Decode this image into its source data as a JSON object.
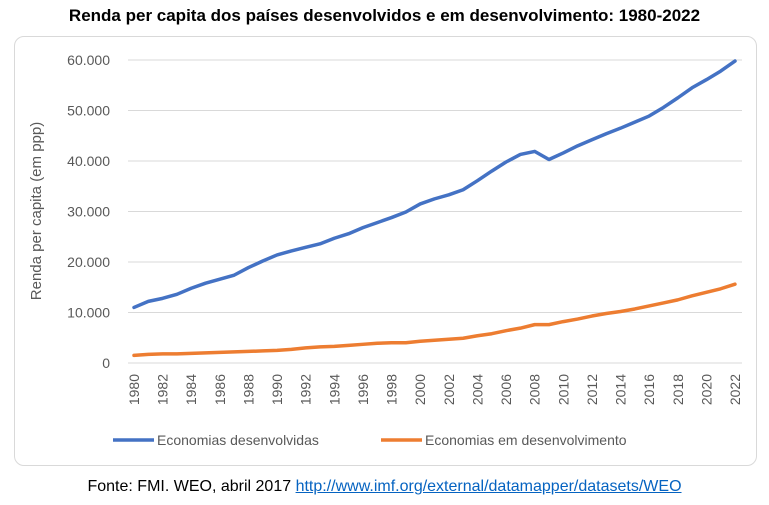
{
  "title": "Renda per capita dos países desenvolvidos e em desenvolvimento: 1980-2022",
  "source": {
    "prefix": "Fonte: FMI. WEO, abril 2017",
    "link_text": "http://www.imf.org/external/datamapper/datasets/WEO"
  },
  "colors": {
    "developed": "#4472c4",
    "developing": "#ed7d31",
    "grid": "#d9d9d9",
    "axis_text": "#595959"
  },
  "chart_data": {
    "type": "line",
    "title": "Renda per capita dos países desenvolvidos e em desenvolvimento: 1980-2022",
    "ylabel": "Renda per capita (em ppp)",
    "xlabel": "",
    "ylim": [
      0,
      60000
    ],
    "y_ticks": [
      0,
      10000,
      20000,
      30000,
      40000,
      50000,
      60000
    ],
    "y_tick_labels": [
      "0",
      "10.000",
      "20.000",
      "30.000",
      "40.000",
      "50.000",
      "60.000"
    ],
    "x_tick_labels": [
      "1980",
      "1982",
      "1984",
      "1986",
      "1988",
      "1990",
      "1992",
      "1994",
      "1996",
      "1998",
      "2000",
      "2002",
      "2004",
      "2006",
      "2008",
      "2010",
      "2012",
      "2014",
      "2016",
      "2018",
      "2020",
      "2022"
    ],
    "grid": true,
    "legend_position": "bottom",
    "x": [
      1980,
      1981,
      1982,
      1983,
      1984,
      1985,
      1986,
      1987,
      1988,
      1989,
      1990,
      1991,
      1992,
      1993,
      1994,
      1995,
      1996,
      1997,
      1998,
      1999,
      2000,
      2001,
      2002,
      2003,
      2004,
      2005,
      2006,
      2007,
      2008,
      2009,
      2010,
      2011,
      2012,
      2013,
      2014,
      2015,
      2016,
      2017,
      2018,
      2019,
      2020,
      2021,
      2022
    ],
    "series": [
      {
        "name": "Economias desenvolvidas",
        "values": [
          11000,
          12200,
          12800,
          13600,
          14800,
          15800,
          16600,
          17400,
          18900,
          20200,
          21400,
          22200,
          22900,
          23600,
          24700,
          25600,
          26800,
          27800,
          28800,
          29900,
          31500,
          32500,
          33300,
          34300,
          36100,
          38000,
          39800,
          41300,
          41900,
          40300,
          41600,
          43000,
          44200,
          45400,
          46500,
          47700,
          48900,
          50600,
          52500,
          54500,
          56100,
          57800,
          59800
        ]
      },
      {
        "name": "Economias em desenvolvimento",
        "values": [
          1500,
          1700,
          1800,
          1800,
          1900,
          2000,
          2100,
          2200,
          2300,
          2400,
          2500,
          2700,
          3000,
          3200,
          3300,
          3500,
          3700,
          3900,
          4000,
          4000,
          4300,
          4500,
          4700,
          4900,
          5400,
          5800,
          6400,
          6900,
          7600,
          7600,
          8200,
          8700,
          9300,
          9800,
          10200,
          10700,
          11300,
          11900,
          12500,
          13300,
          14000,
          14700,
          15600
        ]
      }
    ]
  }
}
